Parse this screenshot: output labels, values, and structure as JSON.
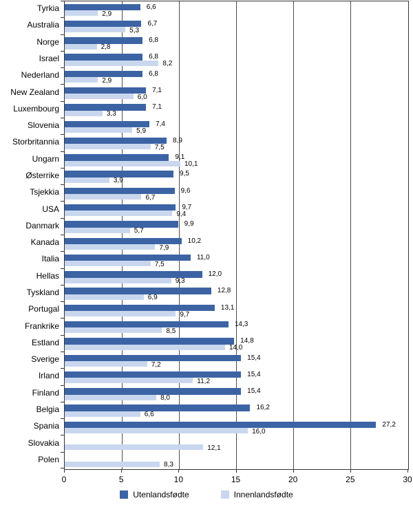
{
  "chart_data": {
    "type": "bar",
    "orientation": "horizontal",
    "title": "",
    "xlabel": "",
    "ylabel": "",
    "xlim": [
      0,
      30
    ],
    "x_ticks": [
      0,
      5,
      10,
      15,
      20,
      25,
      30
    ],
    "x_tick_labels": [
      "0",
      "5",
      "10",
      "15",
      "20",
      "25",
      "30"
    ],
    "grid": "vertical",
    "legend_position": "bottom",
    "decimal_separator": ",",
    "categories": [
      "Tyrkia",
      "Australia",
      "Norge",
      "Israel",
      "Nederland",
      "New Zealand",
      "Luxembourg",
      "Slovenia",
      "Storbritannia",
      "Ungarn",
      "Østerrike",
      "Tsjekkia",
      "USA",
      "Danmark",
      "Kanada",
      "Italia",
      "Hellas",
      "Tyskland",
      "Portugal",
      "Frankrike",
      "Estland",
      "Sverige",
      "Irland",
      "Finland",
      "Belgia",
      "Spania",
      "Slovakia",
      "Polen"
    ],
    "series": [
      {
        "name": "Utenlandsfødte",
        "color": "#3C64A4",
        "values": [
          6.6,
          6.7,
          6.8,
          6.8,
          6.8,
          7.1,
          7.1,
          7.4,
          8.9,
          9.1,
          9.5,
          9.6,
          9.7,
          9.9,
          10.2,
          11.0,
          12.0,
          12.8,
          13.1,
          14.3,
          14.8,
          15.4,
          15.4,
          15.4,
          16.2,
          27.2,
          null,
          null
        ],
        "labels": [
          "6,6",
          "6,7",
          "6,8",
          "6,8",
          "6,8",
          "7,1",
          "7,1",
          "7,4",
          "8,9",
          "9,1",
          "9,5",
          "9,6",
          "9,7",
          "9,9",
          "10,2",
          "11,0",
          "12,0",
          "12,8",
          "13,1",
          "14,3",
          "14,8",
          "15,4",
          "15,4",
          "15,4",
          "16,2",
          "27,2",
          null,
          null
        ]
      },
      {
        "name": "Innenlandsfødte",
        "color": "#C9D7EE",
        "values": [
          2.9,
          5.3,
          2.8,
          8.2,
          2.9,
          6.0,
          3.3,
          5.9,
          7.5,
          10.1,
          3.9,
          6.7,
          9.4,
          5.7,
          7.9,
          7.5,
          9.3,
          6.9,
          9.7,
          8.5,
          14.0,
          7.2,
          11.2,
          8.0,
          6.6,
          16.0,
          12.1,
          8.3
        ],
        "labels": [
          "2,9",
          "5,3",
          "2,8",
          "8,2",
          "2,9",
          "6,0",
          "3,3",
          "5,9",
          "7,5",
          "10,1",
          "3,9",
          "6,7",
          "9,4",
          "5,7",
          "7,9",
          "7,5",
          "9,3",
          "6,9",
          "9,7",
          "8,5",
          "14,0",
          "7,2",
          "11,2",
          "8,0",
          "6,6",
          "16,0",
          "12,1",
          "8,3"
        ]
      }
    ],
    "colors": {
      "gridline": "#4d4d4d",
      "frame": "#333333",
      "text": "#000000"
    }
  }
}
